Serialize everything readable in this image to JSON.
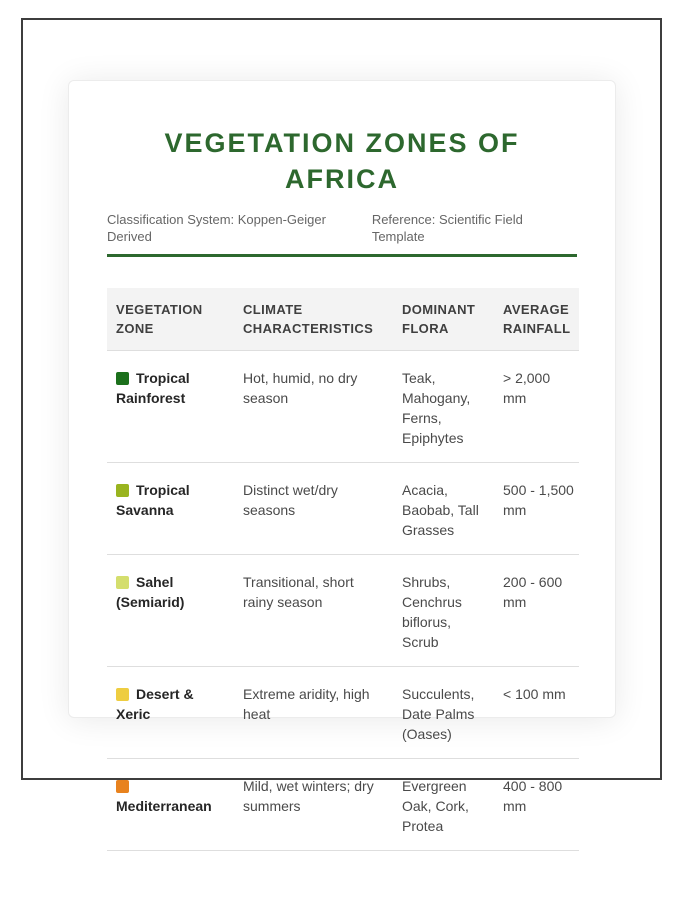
{
  "page": {
    "title": "VEGETATION ZONES OF AFRICA",
    "meta_left": "Classification System: Koppen-Geiger Derived",
    "meta_right": "Reference: Scientific Field Template"
  },
  "colors": {
    "title_green": "#2d682e",
    "rule_green": "#2d682e",
    "frame_border": "#3d3d3d",
    "header_bg": "#f3f3f3"
  },
  "table": {
    "headers": [
      "VEGETATION ZONE",
      "CLIMATE CHARACTERISTICS",
      "DOMINANT FLORA",
      "AVERAGE RAINFALL"
    ],
    "rows": [
      {
        "zone": "Tropical Rainforest",
        "swatch_color": "#1c701c",
        "climate": "Hot, humid, no dry season",
        "flora": "Teak, Mahogany, Ferns, Epiphytes",
        "rainfall": "> 2,000 mm"
      },
      {
        "zone": "Tropical Savanna",
        "swatch_color": "#99b41f",
        "climate": "Distinct wet/dry seasons",
        "flora": "Acacia, Baobab, Tall Grasses",
        "rainfall": "500 - 1,500 mm"
      },
      {
        "zone": "Sahel (Semiarid)",
        "swatch_color": "#d4de6d",
        "climate": "Transitional, short rainy season",
        "flora": "Shrubs, Cenchrus biflorus, Scrub",
        "rainfall": "200 - 600 mm"
      },
      {
        "zone": "Desert & Xeric",
        "swatch_color": "#eecd41",
        "climate": "Extreme aridity, high heat",
        "flora": "Succulents, Date Palms (Oases)",
        "rainfall": "< 100 mm"
      },
      {
        "zone": "Mediterranean",
        "swatch_color": "#e8821e",
        "climate": "Mild, wet winters; dry summers",
        "flora": "Evergreen Oak, Cork, Protea",
        "rainfall": "400 - 800 mm"
      }
    ]
  }
}
